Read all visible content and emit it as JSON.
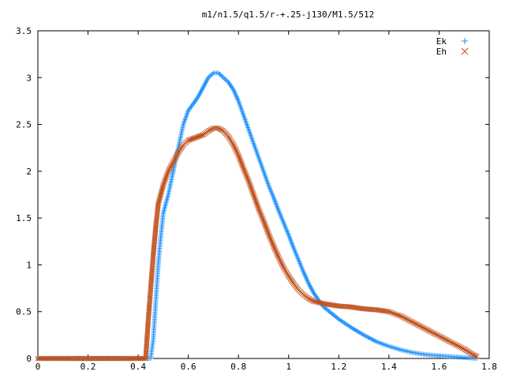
{
  "chart_data": {
    "type": "scatter",
    "title": "m1/n1.5/q1.5/r-+.25-j130/M1.5/512",
    "xlabel": "",
    "ylabel": "",
    "xlim": [
      0,
      1.8
    ],
    "ylim": [
      0,
      3.5
    ],
    "x_ticks": [
      "0",
      "0.2",
      "0.4",
      "0.6",
      "0.8",
      "1",
      "1.2",
      "1.4",
      "1.6",
      "1.8"
    ],
    "y_ticks": [
      "0",
      "0.5",
      "1",
      "1.5",
      "2",
      "2.5",
      "3",
      "3.5"
    ],
    "legend_position": "top-right",
    "grid": false,
    "series": [
      {
        "name": "Ek",
        "marker": "plus",
        "color": "#1e90ff",
        "points": [
          [
            0.0,
            0.0
          ],
          [
            0.45,
            0.0
          ],
          [
            0.46,
            0.2
          ],
          [
            0.47,
            0.6
          ],
          [
            0.48,
            1.0
          ],
          [
            0.49,
            1.3
          ],
          [
            0.5,
            1.55
          ],
          [
            0.52,
            1.75
          ],
          [
            0.54,
            2.0
          ],
          [
            0.56,
            2.25
          ],
          [
            0.58,
            2.5
          ],
          [
            0.6,
            2.65
          ],
          [
            0.62,
            2.72
          ],
          [
            0.64,
            2.8
          ],
          [
            0.66,
            2.9
          ],
          [
            0.68,
            3.0
          ],
          [
            0.7,
            3.05
          ],
          [
            0.72,
            3.05
          ],
          [
            0.74,
            3.0
          ],
          [
            0.76,
            2.95
          ],
          [
            0.78,
            2.87
          ],
          [
            0.8,
            2.75
          ],
          [
            0.82,
            2.6
          ],
          [
            0.84,
            2.45
          ],
          [
            0.86,
            2.3
          ],
          [
            0.88,
            2.15
          ],
          [
            0.9,
            2.0
          ],
          [
            0.92,
            1.85
          ],
          [
            0.94,
            1.72
          ],
          [
            0.96,
            1.58
          ],
          [
            0.98,
            1.45
          ],
          [
            1.0,
            1.32
          ],
          [
            1.02,
            1.18
          ],
          [
            1.04,
            1.05
          ],
          [
            1.06,
            0.92
          ],
          [
            1.08,
            0.8
          ],
          [
            1.1,
            0.7
          ],
          [
            1.12,
            0.62
          ],
          [
            1.14,
            0.55
          ],
          [
            1.2,
            0.42
          ],
          [
            1.25,
            0.33
          ],
          [
            1.3,
            0.25
          ],
          [
            1.35,
            0.18
          ],
          [
            1.4,
            0.13
          ],
          [
            1.45,
            0.09
          ],
          [
            1.5,
            0.06
          ],
          [
            1.55,
            0.04
          ],
          [
            1.6,
            0.03
          ],
          [
            1.65,
            0.02
          ],
          [
            1.7,
            0.01
          ],
          [
            1.75,
            0.0
          ]
        ]
      },
      {
        "name": "Eh",
        "marker": "cross",
        "color": "#c0501b",
        "points": [
          [
            0.0,
            0.0
          ],
          [
            0.43,
            0.0
          ],
          [
            0.44,
            0.4
          ],
          [
            0.45,
            0.75
          ],
          [
            0.46,
            1.1
          ],
          [
            0.47,
            1.4
          ],
          [
            0.48,
            1.65
          ],
          [
            0.5,
            1.85
          ],
          [
            0.52,
            2.0
          ],
          [
            0.54,
            2.1
          ],
          [
            0.56,
            2.2
          ],
          [
            0.58,
            2.28
          ],
          [
            0.6,
            2.33
          ],
          [
            0.62,
            2.35
          ],
          [
            0.64,
            2.37
          ],
          [
            0.66,
            2.39
          ],
          [
            0.68,
            2.43
          ],
          [
            0.7,
            2.46
          ],
          [
            0.72,
            2.46
          ],
          [
            0.74,
            2.43
          ],
          [
            0.76,
            2.37
          ],
          [
            0.78,
            2.28
          ],
          [
            0.8,
            2.17
          ],
          [
            0.82,
            2.03
          ],
          [
            0.84,
            1.9
          ],
          [
            0.86,
            1.75
          ],
          [
            0.88,
            1.6
          ],
          [
            0.9,
            1.47
          ],
          [
            0.92,
            1.33
          ],
          [
            0.94,
            1.2
          ],
          [
            0.96,
            1.08
          ],
          [
            0.98,
            0.97
          ],
          [
            1.0,
            0.88
          ],
          [
            1.02,
            0.8
          ],
          [
            1.04,
            0.73
          ],
          [
            1.06,
            0.68
          ],
          [
            1.08,
            0.64
          ],
          [
            1.1,
            0.61
          ],
          [
            1.15,
            0.58
          ],
          [
            1.2,
            0.56
          ],
          [
            1.25,
            0.55
          ],
          [
            1.3,
            0.53
          ],
          [
            1.35,
            0.52
          ],
          [
            1.4,
            0.5
          ],
          [
            1.45,
            0.45
          ],
          [
            1.5,
            0.38
          ],
          [
            1.55,
            0.31
          ],
          [
            1.6,
            0.24
          ],
          [
            1.65,
            0.17
          ],
          [
            1.7,
            0.1
          ],
          [
            1.73,
            0.05
          ],
          [
            1.75,
            0.02
          ]
        ]
      }
    ]
  }
}
